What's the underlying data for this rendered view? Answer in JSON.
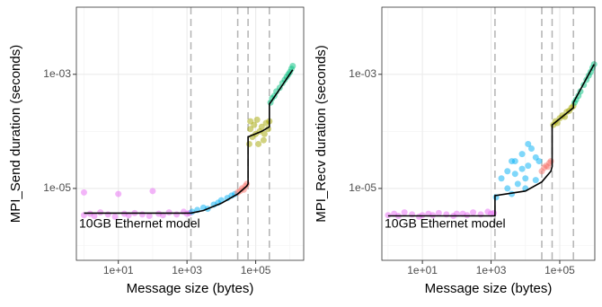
{
  "chart_data": [
    {
      "type": "scatter",
      "y_label": "MPI_Send duration (seconds)",
      "x_label": "Message size (bytes)",
      "annotation": "10GB Ethernet model",
      "log_x": true,
      "log_y": true,
      "grid": true,
      "xlim": [
        0.6,
        2500000
      ],
      "ylim": [
        5.5e-07,
        0.015
      ],
      "xticks": [
        {
          "value": 10,
          "label": "1e+01"
        },
        {
          "value": 1000,
          "label": "1e+03"
        },
        {
          "value": 100000,
          "label": "1e+05"
        }
      ],
      "yticks": [
        {
          "value": 1e-05,
          "label": "1e-05"
        },
        {
          "value": 0.001,
          "label": "1e-03"
        }
      ],
      "minor_xticks": [
        1,
        100,
        10000,
        1000000
      ],
      "minor_yticks": [
        1e-06,
        0.0001
      ],
      "vlines": [
        1300,
        30000,
        60000,
        250000
      ],
      "series": [
        {
          "color": "#e76bf3",
          "x": [
            1,
            1,
            1.5,
            2,
            3,
            5,
            8,
            10,
            15,
            20,
            30,
            50,
            80,
            100,
            150,
            200,
            300,
            500,
            800,
            1000,
            1200
          ],
          "values": [
            3.4e-06,
            8.5e-06,
            3.6e-06,
            3.3e-06,
            3.8e-06,
            3.5e-06,
            3.2e-06,
            8e-06,
            3.6e-06,
            3.4e-06,
            3.7e-06,
            3.5e-06,
            3.3e-06,
            9e-06,
            3.6e-06,
            3.4e-06,
            3.8e-06,
            3.5e-06,
            3.9e-06,
            3.6e-06,
            3.7e-06
          ]
        },
        {
          "color": "#00b0f6",
          "x": [
            1400,
            2000,
            3000,
            4000,
            6000,
            8000,
            10000,
            15000,
            20000,
            25000
          ],
          "values": [
            3.9e-06,
            4.2e-06,
            4.6e-06,
            4.4e-06,
            5.2e-06,
            5.6e-06,
            6.2e-06,
            6.8e-06,
            7.5e-06,
            8e-06
          ]
        },
        {
          "color": "#f8766d",
          "x": [
            30000,
            35000,
            40000,
            45000,
            50000,
            55000
          ],
          "values": [
            8.5e-06,
            9e-06,
            1e-05,
            9.5e-06,
            1.1e-05,
            1.2e-05
          ]
        },
        {
          "color": "#a3a500",
          "x": [
            65000,
            70000,
            80000,
            90000,
            100000,
            110000,
            130000,
            150000,
            170000,
            200000,
            230000,
            250000,
            70000,
            120000,
            180000
          ],
          "values": [
            6e-05,
            0.00011,
            8e-05,
            0.00013,
            9e-05,
            0.00016,
            0.0001,
            0.00012,
            7e-05,
            0.00014,
            0.00011,
            0.00015,
            0.00015,
            6e-05,
            9e-05
          ]
        },
        {
          "color": "#00bf7d",
          "x": [
            270000,
            300000,
            350000,
            400000,
            500000,
            600000,
            700000,
            800000,
            900000,
            1000000,
            1100000,
            1200000
          ],
          "values": [
            0.00032,
            0.00038,
            0.00042,
            0.0005,
            0.00058,
            0.0007,
            0.0008,
            0.0009,
            0.001,
            0.0011,
            0.00125,
            0.0014
          ]
        }
      ],
      "model_line": {
        "color": "#000000",
        "x": [
          1,
          1300,
          3000,
          10000,
          30000,
          55000,
          60000,
          60000,
          150000,
          250000,
          250000,
          500000,
          1200000
        ],
        "values": [
          3.7e-06,
          3.7e-06,
          4.1e-06,
          5.5e-06,
          8e-06,
          1.1e-05,
          1.2e-05,
          8e-05,
          0.0001,
          0.00012,
          0.0003,
          0.00055,
          0.0012
        ]
      }
    },
    {
      "type": "scatter",
      "y_label": "MPI_Recv duration (seconds)",
      "x_label": "Message size (bytes)",
      "annotation": "10GB Ethernet model",
      "log_x": true,
      "log_y": true,
      "grid": true,
      "xlim": [
        0.66,
        1050000
      ],
      "ylim": [
        5.5e-07,
        0.015
      ],
      "xticks": [
        {
          "value": 10,
          "label": "1e+01"
        },
        {
          "value": 1000,
          "label": "1e+03"
        },
        {
          "value": 100000,
          "label": "1e+05"
        }
      ],
      "yticks": [
        {
          "value": 1e-05,
          "label": "1e-05"
        },
        {
          "value": 0.001,
          "label": "1e-03"
        }
      ],
      "minor_xticks": [
        1,
        100,
        10000,
        1000000
      ],
      "minor_yticks": [
        1e-06,
        0.0001
      ],
      "vlines": [
        1300,
        30000,
        60000,
        250000
      ],
      "series": [
        {
          "color": "#e76bf3",
          "x": [
            1,
            1.5,
            2,
            3,
            5,
            8,
            10,
            15,
            20,
            30,
            50,
            80,
            100,
            150,
            200,
            300,
            500,
            800,
            1000,
            1200
          ],
          "values": [
            3.4e-06,
            3.6e-06,
            3.3e-06,
            3.8e-06,
            3.5e-06,
            3.2e-06,
            3.4e-06,
            3.6e-06,
            3.4e-06,
            3.7e-06,
            3.5e-06,
            3.3e-06,
            3.6e-06,
            3.6e-06,
            3.4e-06,
            3.8e-06,
            3.5e-06,
            3.9e-06,
            3.6e-06,
            3.7e-06
          ]
        },
        {
          "color": "#00b0f6",
          "x": [
            1400,
            2000,
            3000,
            4000,
            5000,
            6000,
            8000,
            10000,
            12000,
            15000,
            20000,
            25000,
            3000,
            5000,
            8000,
            12000,
            20000,
            4000,
            10000
          ],
          "values": [
            7e-06,
            1.5e-05,
            2e-05,
            8e-06,
            3e-05,
            1.2e-05,
            4e-05,
            1e-05,
            2.5e-05,
            5e-05,
            1.4e-05,
            3e-05,
            1e-05,
            1.8e-05,
            2.2e-05,
            6e-05,
            3.5e-05,
            3e-05,
            1.5e-05
          ]
        },
        {
          "color": "#f8766d",
          "x": [
            30000,
            35000,
            40000,
            45000,
            50000,
            55000
          ],
          "values": [
            2e-05,
            2.3e-05,
            2.5e-05,
            2.4e-05,
            2.8e-05,
            3e-05
          ]
        },
        {
          "color": "#a3a500",
          "x": [
            65000,
            75000,
            85000,
            100000,
            120000,
            140000,
            160000,
            190000,
            220000,
            250000
          ],
          "values": [
            0.00013,
            0.00015,
            0.00014,
            0.00017,
            0.00019,
            0.00018,
            0.00022,
            0.00023,
            0.00026,
            0.00028
          ]
        },
        {
          "color": "#00bf7d",
          "x": [
            270000,
            300000,
            350000,
            400000,
            500000,
            600000,
            700000,
            800000,
            900000,
            1000000
          ],
          "values": [
            0.00032,
            0.00036,
            0.00042,
            0.0005,
            0.00065,
            0.0008,
            0.00095,
            0.0011,
            0.0013,
            0.0015
          ]
        }
      ],
      "model_line": {
        "color": "#000000",
        "x": [
          1,
          1300,
          1300,
          10000,
          30000,
          55000,
          60000,
          60000,
          250000,
          250000,
          1000000
        ],
        "values": [
          3.3e-06,
          3.3e-06,
          7.5e-06,
          9e-06,
          1.3e-05,
          2e-05,
          2.4e-05,
          0.00013,
          0.00026,
          0.00032,
          0.0015
        ]
      }
    }
  ]
}
